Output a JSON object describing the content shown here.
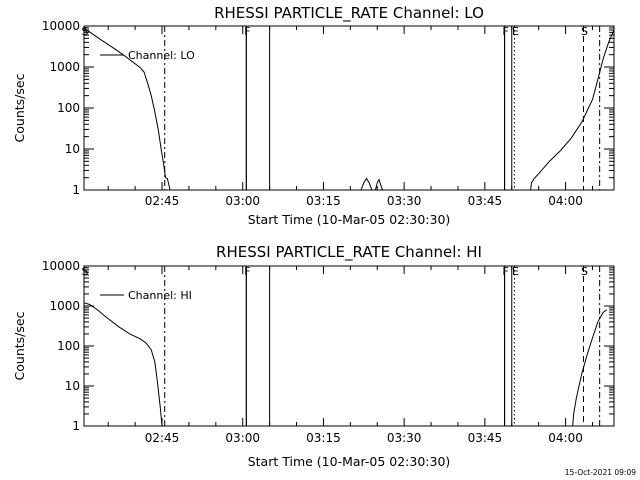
{
  "chart_data": [
    {
      "type": "line",
      "title": "RHESSI PARTICLE_RATE Channel: LO",
      "xlabel": "Start Time (10-Mar-05 02:30:30)",
      "ylabel": "Counts/sec",
      "yscale": "log",
      "ylim": [
        1,
        10000
      ],
      "xlim": [
        "02:30:30",
        "04:09:00"
      ],
      "x_ticks": [
        "02:45",
        "03:00",
        "03:15",
        "03:30",
        "03:45",
        "04:00"
      ],
      "y_ticks": [
        "1",
        "10",
        "100",
        "1000",
        "10000"
      ],
      "legend": {
        "entries": [
          "Channel: LO"
        ],
        "placement": "upper-left"
      },
      "series": [
        {
          "name": "Channel: LO",
          "points": [
            [
              "02:30:30",
              9000
            ],
            [
              "02:32:00",
              6500
            ],
            [
              "02:34:00",
              4300
            ],
            [
              "02:36:00",
              2900
            ],
            [
              "02:38:00",
              1900
            ],
            [
              "02:40:00",
              1200
            ],
            [
              "02:41:00",
              950
            ],
            [
              "02:41:40",
              750
            ],
            [
              "02:42:20",
              400
            ],
            [
              "02:43:00",
              200
            ],
            [
              "02:43:40",
              80
            ],
            [
              "02:44:20",
              28
            ],
            [
              "02:44:50",
              10
            ],
            [
              "02:45:20",
              4
            ],
            [
              "02:45:40",
              2
            ],
            [
              "02:46:00",
              1.9
            ],
            [
              "02:46:30",
              1
            ]
          ]
        },
        {
          "name": "",
          "points": [
            [
              "03:00:40",
              1
            ],
            [
              "03:00:40",
              10000
            ]
          ]
        },
        {
          "name": "",
          "points": [
            [
              "03:05:00",
              1
            ],
            [
              "03:05:00",
              10000
            ]
          ]
        },
        {
          "name": "",
          "points": [
            [
              "03:22:00",
              1
            ],
            [
              "03:22:30",
              1.5
            ],
            [
              "03:23:00",
              1.9
            ],
            [
              "03:23:30",
              1.5
            ],
            [
              "03:24:00",
              1
            ],
            [
              "03:24:40",
              1
            ],
            [
              "03:25:00",
              1.5
            ],
            [
              "03:25:20",
              1.8
            ],
            [
              "03:25:40",
              1.3
            ],
            [
              "03:26:00",
              1
            ]
          ]
        },
        {
          "name": "",
          "points": [
            [
              "03:48:40",
              1
            ],
            [
              "03:48:40",
              10000
            ]
          ]
        },
        {
          "name": "",
          "points": [
            [
              "03:50:00",
              1
            ],
            [
              "03:50:00",
              10000
            ]
          ]
        },
        {
          "name": "",
          "points": [
            [
              "03:53:30",
              1
            ],
            [
              "03:53:40",
              1.5
            ],
            [
              "03:54:10",
              1.9
            ],
            [
              "03:55:00",
              2.5
            ],
            [
              "03:57:00",
              5
            ],
            [
              "03:59:00",
              9
            ],
            [
              "04:01:00",
              18
            ],
            [
              "04:03:00",
              45
            ],
            [
              "04:05:00",
              160
            ],
            [
              "04:06:00",
              500
            ],
            [
              "04:07:00",
              1600
            ],
            [
              "04:08:00",
              4000
            ],
            [
              "04:09:00",
              8000
            ]
          ]
        }
      ],
      "markers": [
        {
          "label": "S",
          "time": "02:30:30",
          "style": "solid"
        },
        {
          "label": "",
          "time": "02:45:30",
          "style": "dashdot"
        },
        {
          "label": "F",
          "time": "03:00:40",
          "style": "solid"
        },
        {
          "label": "F",
          "time": "03:48:40",
          "style": "solid"
        },
        {
          "label": "E",
          "time": "03:50:30",
          "style": "dotted"
        },
        {
          "label": "S",
          "time": "04:03:20",
          "style": "dashed"
        },
        {
          "label": "",
          "time": "04:06:20",
          "style": "dashdot"
        }
      ]
    },
    {
      "type": "line",
      "title": "RHESSI PARTICLE_RATE Channel: HI",
      "xlabel": "Start Time (10-Mar-05 02:30:30)",
      "ylabel": "Counts/sec",
      "yscale": "log",
      "ylim": [
        1,
        10000
      ],
      "xlim": [
        "02:30:30",
        "04:09:00"
      ],
      "x_ticks": [
        "02:45",
        "03:00",
        "03:15",
        "03:30",
        "03:45",
        "04:00"
      ],
      "y_ticks": [
        "1",
        "10",
        "100",
        "1000",
        "10000"
      ],
      "legend": {
        "entries": [
          "Channel: HI"
        ],
        "placement": "upper-left"
      },
      "series": [
        {
          "name": "Channel: HI",
          "points": [
            [
              "02:30:30",
              1200
            ],
            [
              "02:31:30",
              1100
            ],
            [
              "02:33:00",
              800
            ],
            [
              "02:35:00",
              480
            ],
            [
              "02:37:00",
              300
            ],
            [
              "02:39:00",
              200
            ],
            [
              "02:41:00",
              150
            ],
            [
              "02:42:00",
              120
            ],
            [
              "02:43:00",
              80
            ],
            [
              "02:43:40",
              40
            ],
            [
              "02:44:10",
              12
            ],
            [
              "02:44:40",
              3
            ],
            [
              "02:45:00",
              1
            ]
          ]
        },
        {
          "name": "",
          "points": [
            [
              "03:00:40",
              1
            ],
            [
              "03:00:40",
              10000
            ]
          ]
        },
        {
          "name": "",
          "points": [
            [
              "03:05:00",
              1
            ],
            [
              "03:05:00",
              10000
            ]
          ]
        },
        {
          "name": "",
          "points": [
            [
              "03:48:40",
              1
            ],
            [
              "03:48:40",
              10000
            ]
          ]
        },
        {
          "name": "",
          "points": [
            [
              "03:50:00",
              1
            ],
            [
              "03:50:00",
              10000
            ]
          ]
        },
        {
          "name": "",
          "points": [
            [
              "04:01:20",
              1
            ],
            [
              "04:01:30",
              2
            ],
            [
              "04:02:00",
              5
            ],
            [
              "04:03:00",
              20
            ],
            [
              "04:04:00",
              60
            ],
            [
              "04:05:00",
              160
            ],
            [
              "04:06:00",
              400
            ],
            [
              "04:07:00",
              700
            ],
            [
              "04:07:40",
              800
            ]
          ]
        }
      ],
      "markers": [
        {
          "label": "S",
          "time": "02:30:30",
          "style": "solid"
        },
        {
          "label": "",
          "time": "02:45:30",
          "style": "dashdot"
        },
        {
          "label": "F",
          "time": "03:00:40",
          "style": "solid"
        },
        {
          "label": "F",
          "time": "03:48:40",
          "style": "solid"
        },
        {
          "label": "E",
          "time": "03:50:30",
          "style": "dotted"
        },
        {
          "label": "S",
          "time": "04:03:20",
          "style": "dashed"
        },
        {
          "label": "",
          "time": "04:06:20",
          "style": "dashdot"
        }
      ]
    }
  ],
  "footer": {
    "timestamp": "15-Oct-2021 09:09"
  }
}
